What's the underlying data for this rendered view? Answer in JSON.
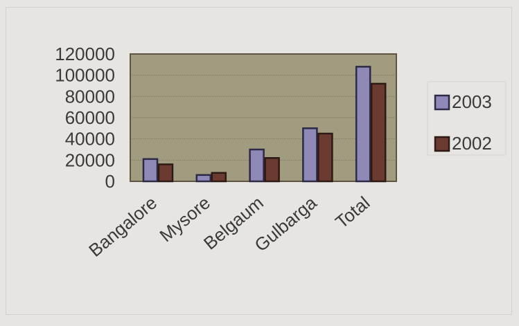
{
  "chart_data": {
    "type": "bar",
    "categories": [
      "Bangalore",
      "Mysore",
      "Belgaum",
      "Gulbarga",
      "Total"
    ],
    "series": [
      {
        "name": "2003",
        "values": [
          21000,
          6000,
          30000,
          50000,
          108000
        ]
      },
      {
        "name": "2002",
        "values": [
          16000,
          8000,
          22000,
          45000,
          92000
        ]
      }
    ],
    "y_ticks": [
      "120000",
      "100000",
      "80000",
      "60000",
      "40000",
      "20000",
      "0"
    ],
    "ylim": [
      0,
      120000
    ],
    "grid": true,
    "legend_position": "right",
    "colors": {
      "series_2003": "#8f89b8",
      "series_2002": "#6b3a30",
      "plot_background": "#a19b80",
      "page_background": "#e6e5e1",
      "axis": "#4a4030"
    }
  }
}
